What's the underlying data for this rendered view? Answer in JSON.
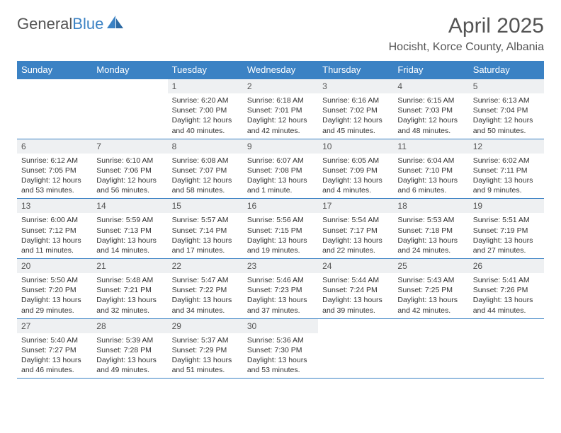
{
  "brand": {
    "part1": "General",
    "part2": "Blue"
  },
  "title": "April 2025",
  "location": "Hocisht, Korce County, Albania",
  "colors": {
    "header_bg": "#3b82c4",
    "header_text": "#ffffff",
    "daynum_bg": "#eef0f2",
    "border": "#3b82c4",
    "body_text": "#333333",
    "title_text": "#545454"
  },
  "dayNames": [
    "Sunday",
    "Monday",
    "Tuesday",
    "Wednesday",
    "Thursday",
    "Friday",
    "Saturday"
  ],
  "weeks": [
    [
      null,
      null,
      {
        "n": "1",
        "sr": "6:20 AM",
        "ss": "7:00 PM",
        "dl": "12 hours and 40 minutes."
      },
      {
        "n": "2",
        "sr": "6:18 AM",
        "ss": "7:01 PM",
        "dl": "12 hours and 42 minutes."
      },
      {
        "n": "3",
        "sr": "6:16 AM",
        "ss": "7:02 PM",
        "dl": "12 hours and 45 minutes."
      },
      {
        "n": "4",
        "sr": "6:15 AM",
        "ss": "7:03 PM",
        "dl": "12 hours and 48 minutes."
      },
      {
        "n": "5",
        "sr": "6:13 AM",
        "ss": "7:04 PM",
        "dl": "12 hours and 50 minutes."
      }
    ],
    [
      {
        "n": "6",
        "sr": "6:12 AM",
        "ss": "7:05 PM",
        "dl": "12 hours and 53 minutes."
      },
      {
        "n": "7",
        "sr": "6:10 AM",
        "ss": "7:06 PM",
        "dl": "12 hours and 56 minutes."
      },
      {
        "n": "8",
        "sr": "6:08 AM",
        "ss": "7:07 PM",
        "dl": "12 hours and 58 minutes."
      },
      {
        "n": "9",
        "sr": "6:07 AM",
        "ss": "7:08 PM",
        "dl": "13 hours and 1 minute."
      },
      {
        "n": "10",
        "sr": "6:05 AM",
        "ss": "7:09 PM",
        "dl": "13 hours and 4 minutes."
      },
      {
        "n": "11",
        "sr": "6:04 AM",
        "ss": "7:10 PM",
        "dl": "13 hours and 6 minutes."
      },
      {
        "n": "12",
        "sr": "6:02 AM",
        "ss": "7:11 PM",
        "dl": "13 hours and 9 minutes."
      }
    ],
    [
      {
        "n": "13",
        "sr": "6:00 AM",
        "ss": "7:12 PM",
        "dl": "13 hours and 11 minutes."
      },
      {
        "n": "14",
        "sr": "5:59 AM",
        "ss": "7:13 PM",
        "dl": "13 hours and 14 minutes."
      },
      {
        "n": "15",
        "sr": "5:57 AM",
        "ss": "7:14 PM",
        "dl": "13 hours and 17 minutes."
      },
      {
        "n": "16",
        "sr": "5:56 AM",
        "ss": "7:15 PM",
        "dl": "13 hours and 19 minutes."
      },
      {
        "n": "17",
        "sr": "5:54 AM",
        "ss": "7:17 PM",
        "dl": "13 hours and 22 minutes."
      },
      {
        "n": "18",
        "sr": "5:53 AM",
        "ss": "7:18 PM",
        "dl": "13 hours and 24 minutes."
      },
      {
        "n": "19",
        "sr": "5:51 AM",
        "ss": "7:19 PM",
        "dl": "13 hours and 27 minutes."
      }
    ],
    [
      {
        "n": "20",
        "sr": "5:50 AM",
        "ss": "7:20 PM",
        "dl": "13 hours and 29 minutes."
      },
      {
        "n": "21",
        "sr": "5:48 AM",
        "ss": "7:21 PM",
        "dl": "13 hours and 32 minutes."
      },
      {
        "n": "22",
        "sr": "5:47 AM",
        "ss": "7:22 PM",
        "dl": "13 hours and 34 minutes."
      },
      {
        "n": "23",
        "sr": "5:46 AM",
        "ss": "7:23 PM",
        "dl": "13 hours and 37 minutes."
      },
      {
        "n": "24",
        "sr": "5:44 AM",
        "ss": "7:24 PM",
        "dl": "13 hours and 39 minutes."
      },
      {
        "n": "25",
        "sr": "5:43 AM",
        "ss": "7:25 PM",
        "dl": "13 hours and 42 minutes."
      },
      {
        "n": "26",
        "sr": "5:41 AM",
        "ss": "7:26 PM",
        "dl": "13 hours and 44 minutes."
      }
    ],
    [
      {
        "n": "27",
        "sr": "5:40 AM",
        "ss": "7:27 PM",
        "dl": "13 hours and 46 minutes."
      },
      {
        "n": "28",
        "sr": "5:39 AM",
        "ss": "7:28 PM",
        "dl": "13 hours and 49 minutes."
      },
      {
        "n": "29",
        "sr": "5:37 AM",
        "ss": "7:29 PM",
        "dl": "13 hours and 51 minutes."
      },
      {
        "n": "30",
        "sr": "5:36 AM",
        "ss": "7:30 PM",
        "dl": "13 hours and 53 minutes."
      },
      null,
      null,
      null
    ]
  ],
  "labels": {
    "sunrise": "Sunrise:",
    "sunset": "Sunset:",
    "daylight": "Daylight:"
  }
}
